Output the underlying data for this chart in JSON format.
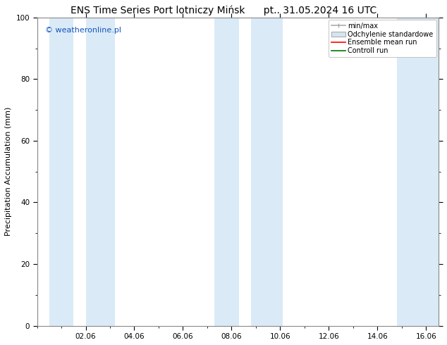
{
  "title_left": "ENS Time Series Port lotniczy Mińsk",
  "title_right": "pt.. 31.05.2024 16 UTC",
  "ylabel": "Precipitation Accumulation (mm)",
  "watermark": "© weatheronline.pl",
  "watermark_color": "#1155bb",
  "ylim": [
    0,
    100
  ],
  "xlim_start": 0.0,
  "xlim_end": 16.5,
  "xtick_labels": [
    "02.06",
    "04.06",
    "06.06",
    "08.06",
    "10.06",
    "12.06",
    "14.06",
    "16.06"
  ],
  "xtick_positions": [
    2,
    4,
    6,
    8,
    10,
    12,
    14,
    16
  ],
  "ytick_labels": [
    "0",
    "20",
    "40",
    "60",
    "80",
    "100"
  ],
  "ytick_positions": [
    0,
    20,
    40,
    60,
    80,
    100
  ],
  "bg_color": "#ffffff",
  "plot_bg_color": "#ffffff",
  "shaded_bands": [
    {
      "x_start": 0.5,
      "x_end": 1.5,
      "color": "#daeaf7"
    },
    {
      "x_start": 2.0,
      "x_end": 3.2,
      "color": "#daeaf7"
    },
    {
      "x_start": 7.3,
      "x_end": 8.3,
      "color": "#daeaf7"
    },
    {
      "x_start": 8.8,
      "x_end": 10.1,
      "color": "#daeaf7"
    },
    {
      "x_start": 14.8,
      "x_end": 16.5,
      "color": "#daeaf7"
    }
  ],
  "legend_entries": [
    {
      "label": "min/max",
      "color": "#aaaaaa",
      "type": "errorbar"
    },
    {
      "label": "Odchylenie standardowe",
      "color": "#ccddee",
      "type": "fill"
    },
    {
      "label": "Ensemble mean run",
      "color": "#ff0000",
      "type": "line"
    },
    {
      "label": "Controll run",
      "color": "#007700",
      "type": "line"
    }
  ],
  "border_color": "#888888",
  "font_size_title": 10,
  "font_size_axis_label": 8,
  "font_size_tick": 7.5,
  "font_size_legend": 7,
  "font_size_watermark": 8
}
